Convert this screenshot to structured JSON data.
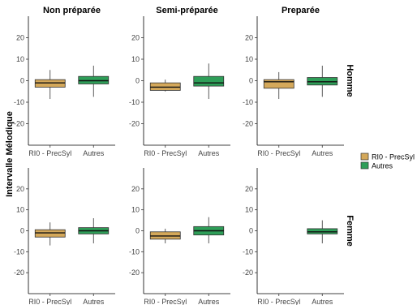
{
  "chart_data": {
    "type": "boxplot",
    "ylabel": "Intervalle Mélodique",
    "columns": [
      "Non préparée",
      "Semi-préparée",
      "Preparée"
    ],
    "rows": [
      "Homme",
      "Femme"
    ],
    "categories": [
      "RI0 - PrecSyl",
      "Autres"
    ],
    "ylim": [
      -30,
      30
    ],
    "yticks": [
      -20,
      -10,
      0,
      10,
      20
    ],
    "grid": false,
    "legend": {
      "position": "right",
      "entries": [
        "RI0 - PrecSyl",
        "Autres"
      ]
    },
    "colors": {
      "RI0 - PrecSyl": "#d4a85a",
      "Autres": "#2e9e58"
    },
    "panels": [
      {
        "column": "Non préparée",
        "row": "Homme",
        "boxes": [
          {
            "category": "RI0 - PrecSyl",
            "whisker_low": -8.5,
            "q1": -3,
            "median": -1,
            "q3": 0.5,
            "whisker_high": 5
          },
          {
            "category": "Autres",
            "whisker_low": -7.5,
            "q1": -1.5,
            "median": 0,
            "q3": 2,
            "whisker_high": 7
          }
        ]
      },
      {
        "column": "Semi-préparée",
        "row": "Homme",
        "boxes": [
          {
            "category": "RI0 - PrecSyl",
            "whisker_low": -5,
            "q1": -4.5,
            "median": -3,
            "q3": -1,
            "whisker_high": 0.5
          },
          {
            "category": "Autres",
            "whisker_low": -8.5,
            "q1": -2.5,
            "median": -1,
            "q3": 2,
            "whisker_high": 8
          }
        ]
      },
      {
        "column": "Preparée",
        "row": "Homme",
        "boxes": [
          {
            "category": "RI0 - PrecSyl",
            "whisker_low": -8.5,
            "q1": -3.5,
            "median": -0.5,
            "q3": 0.5,
            "whisker_high": 4
          },
          {
            "category": "Autres",
            "whisker_low": -7.5,
            "q1": -2,
            "median": -0.5,
            "q3": 1.5,
            "whisker_high": 7
          }
        ]
      },
      {
        "column": "Non préparée",
        "row": "Femme",
        "boxes": [
          {
            "category": "RI0 - PrecSyl",
            "whisker_low": -7,
            "q1": -3,
            "median": -1,
            "q3": 0.5,
            "whisker_high": 4
          },
          {
            "category": "Autres",
            "whisker_low": -6,
            "q1": -1.5,
            "median": 0,
            "q3": 1.5,
            "whisker_high": 6
          }
        ]
      },
      {
        "column": "Semi-préparée",
        "row": "Femme",
        "boxes": [
          {
            "category": "RI0 - PrecSyl",
            "whisker_low": -6,
            "q1": -4,
            "median": -2.5,
            "q3": -0.5,
            "whisker_high": 1
          },
          {
            "category": "Autres",
            "whisker_low": -6,
            "q1": -2,
            "median": 0,
            "q3": 2,
            "whisker_high": 6.5
          }
        ]
      },
      {
        "column": "Preparée",
        "row": "Femme",
        "boxes": [
          {
            "category": "Autres",
            "whisker_low": -6,
            "q1": -1.5,
            "median": -0.5,
            "q3": 1,
            "whisker_high": 5
          }
        ]
      }
    ]
  }
}
